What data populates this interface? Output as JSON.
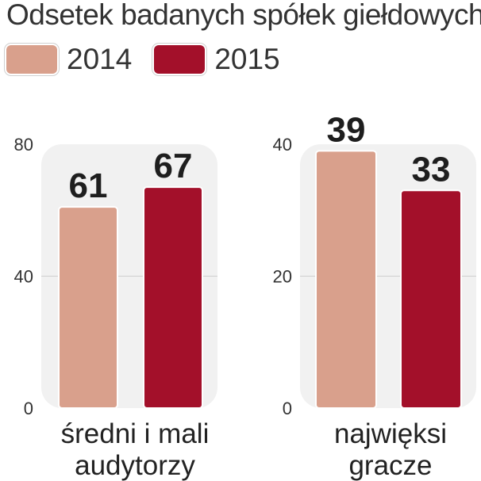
{
  "title": "Odsetek badanych spółek giełdowych",
  "colors": {
    "2014": "#d9a08c",
    "2015": "#a3102a"
  },
  "legend": [
    {
      "label": "2014",
      "color": "#d9a08c"
    },
    {
      "label": "2015",
      "color": "#a3102a"
    }
  ],
  "chart_data": [
    {
      "type": "bar",
      "categories": [
        "2014",
        "2015"
      ],
      "values": [
        61,
        67
      ],
      "group_label": [
        "średni i mali",
        "audytorzy"
      ],
      "ylim": [
        0,
        80
      ],
      "yticks": [
        "0",
        "40",
        "80"
      ]
    },
    {
      "type": "bar",
      "categories": [
        "2014",
        "2015"
      ],
      "values": [
        39,
        33
      ],
      "group_label": [
        "najwięksi",
        "gracze"
      ],
      "ylim": [
        0,
        40
      ],
      "yticks": [
        "0",
        "20",
        "40"
      ]
    }
  ]
}
